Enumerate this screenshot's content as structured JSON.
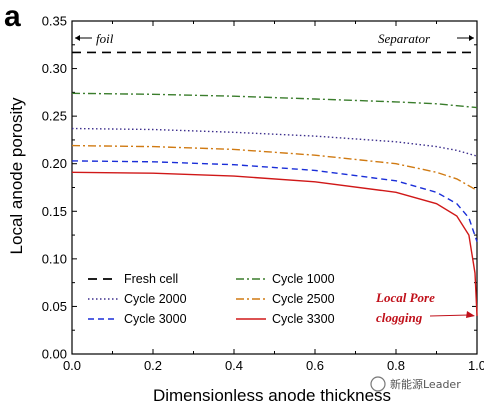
{
  "panel": {
    "letter": "a"
  },
  "watermark": {
    "text": "新能源Leader"
  },
  "chart_data": {
    "type": "line",
    "title": "",
    "xlabel": "Dimensionless anode thickness",
    "ylabel": "Local anode porosity",
    "xlim": [
      0.0,
      1.0
    ],
    "ylim": [
      0.0,
      0.35
    ],
    "xticks": [
      "0.0",
      "0.2",
      "0.4",
      "0.6",
      "0.8",
      "1.0"
    ],
    "yticks": [
      "0.00",
      "0.05",
      "0.10",
      "0.15",
      "0.20",
      "0.25",
      "0.30",
      "0.35"
    ],
    "grid": false,
    "legend_position": "bottom-left",
    "corner_notes": {
      "left": "foil",
      "right": "Separator"
    },
    "annotation": {
      "line1": "Local Pore",
      "line2": "clogging",
      "x": 1.0,
      "y": 0.04
    },
    "series": [
      {
        "name": "Fresh cell",
        "color": "#000000",
        "dash": "9,6",
        "x": [
          0.0,
          0.5,
          1.0
        ],
        "values": [
          0.317,
          0.317,
          0.317
        ]
      },
      {
        "name": "Cycle 1000",
        "color": "#3a7d2c",
        "dash": "8,3,2,3",
        "x": [
          0.0,
          0.2,
          0.4,
          0.6,
          0.8,
          0.9,
          0.95,
          1.0
        ],
        "values": [
          0.274,
          0.273,
          0.271,
          0.268,
          0.265,
          0.263,
          0.261,
          0.259
        ]
      },
      {
        "name": "Cycle 2000",
        "color": "#3c2e8c",
        "dash": "1.5,2.5",
        "x": [
          0.0,
          0.2,
          0.4,
          0.6,
          0.8,
          0.9,
          0.95,
          1.0
        ],
        "values": [
          0.237,
          0.236,
          0.233,
          0.229,
          0.223,
          0.218,
          0.214,
          0.208
        ]
      },
      {
        "name": "Cycle 2500",
        "color": "#d07a12",
        "dash": "8,3,2,3",
        "x": [
          0.0,
          0.2,
          0.4,
          0.6,
          0.8,
          0.9,
          0.95,
          1.0
        ],
        "values": [
          0.219,
          0.218,
          0.215,
          0.209,
          0.2,
          0.191,
          0.184,
          0.172
        ]
      },
      {
        "name": "Cycle 3000",
        "color": "#1a2ed8",
        "dash": "6,4",
        "x": [
          0.0,
          0.2,
          0.4,
          0.6,
          0.8,
          0.9,
          0.95,
          0.98,
          1.0
        ],
        "values": [
          0.203,
          0.202,
          0.199,
          0.193,
          0.182,
          0.17,
          0.158,
          0.143,
          0.118
        ]
      },
      {
        "name": "Cycle 3300",
        "color": "#d01818",
        "dash": "",
        "x": [
          0.0,
          0.2,
          0.4,
          0.6,
          0.8,
          0.9,
          0.95,
          0.98,
          0.995,
          1.0
        ],
        "values": [
          0.191,
          0.19,
          0.187,
          0.181,
          0.17,
          0.158,
          0.145,
          0.125,
          0.085,
          0.04
        ]
      }
    ]
  }
}
